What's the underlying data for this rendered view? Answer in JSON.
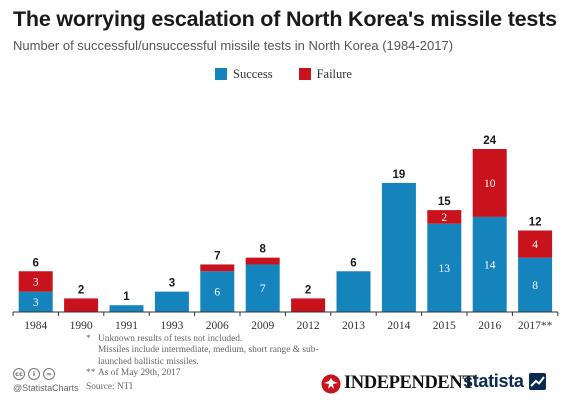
{
  "header": {
    "title": "The worrying escalation of North Korea's missile tests",
    "subtitle": "Number of successful/unsuccessful missile tests in North Korea (1984-2017)"
  },
  "colors": {
    "success": "#1584bd",
    "failure": "#c8121c"
  },
  "chart_data": {
    "type": "bar",
    "stacked": true,
    "categories": [
      "1984",
      "1990",
      "1991",
      "1993",
      "2006",
      "2009",
      "2012",
      "2013",
      "2014",
      "2015",
      "2016",
      "2017**"
    ],
    "series": [
      {
        "name": "Success",
        "values": [
          3,
          0,
          1,
          3,
          6,
          7,
          0,
          6,
          19,
          13,
          14,
          8
        ]
      },
      {
        "name": "Failure",
        "values": [
          3,
          2,
          0,
          0,
          1,
          1,
          2,
          0,
          0,
          2,
          10,
          4
        ]
      }
    ],
    "totals": [
      6,
      2,
      1,
      3,
      7,
      8,
      2,
      6,
      19,
      15,
      24,
      12
    ],
    "inner_labels": {
      "Success": [
        "3",
        "",
        "",
        "",
        "6",
        "7",
        "",
        "",
        "",
        "13",
        "14",
        "8"
      ],
      "Failure": [
        "3",
        "",
        "",
        "",
        "",
        "",
        "",
        "",
        "",
        "2",
        "10",
        "4"
      ]
    },
    "ylim": [
      0,
      24
    ],
    "grid": false,
    "legend": "top-center"
  },
  "notes": [
    {
      "mark": "*",
      "text": "Unknown results of tests not included."
    },
    {
      "mark": "",
      "text": "Missiles include intermediate, medium, short range & sub-launched ballistic missiles."
    },
    {
      "mark": "**",
      "text": "As of May 29th, 2017"
    }
  ],
  "footer": {
    "cc_icons": [
      "cc",
      "i",
      "="
    ],
    "handle": "@StatistaCharts",
    "source": "Source: NTI",
    "brand_independent": "INDEPENDENT",
    "brand_statista": "statista"
  }
}
